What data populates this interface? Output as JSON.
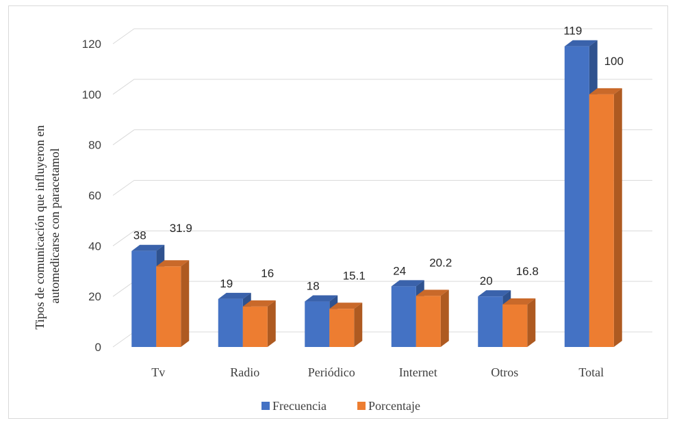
{
  "chart_data": {
    "type": "bar",
    "three_d": true,
    "title": "",
    "xlabel": "",
    "ylabel_lines": [
      "Tipos de comunicación que influyeron en",
      "automedicarse con paracetamol"
    ],
    "categories": [
      "Tv",
      "Radio",
      "Periódico",
      "Internet",
      "Otros",
      "Total"
    ],
    "series": [
      {
        "name": "Frecuencia",
        "color": "#4472C4",
        "side_color": "#2F528F",
        "top_color": "#3A62AB",
        "values": [
          38,
          19,
          18,
          24,
          20,
          119
        ],
        "labels": [
          "38",
          "19",
          "18",
          "24",
          "20",
          "119"
        ]
      },
      {
        "name": "Porcentaje",
        "color": "#ED7D31",
        "side_color": "#AE5A21",
        "top_color": "#C9692A",
        "values": [
          31.9,
          16,
          15.1,
          20.2,
          16.8,
          100
        ],
        "labels": [
          "31.9",
          "16",
          "15.1",
          "20.2",
          "16.8",
          "100"
        ]
      }
    ],
    "ylim": [
      0,
      120
    ],
    "yticks": [
      0,
      20,
      40,
      60,
      80,
      100,
      120
    ],
    "grid": true,
    "legend_position": "bottom"
  }
}
